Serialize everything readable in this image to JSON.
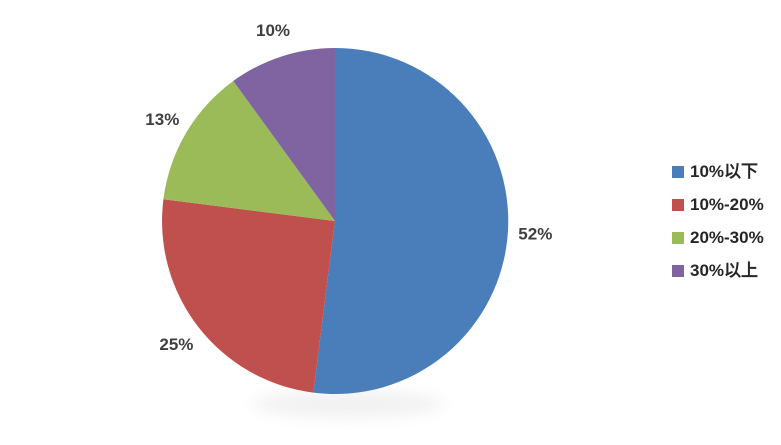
{
  "chart_data": {
    "type": "pie",
    "categories": [
      "10%以下",
      "10%-20%",
      "20%-30%",
      "30%以上"
    ],
    "values": [
      52,
      25,
      13,
      10
    ],
    "data_labels": [
      "52%",
      "25%",
      "13%",
      "10%"
    ],
    "colors": [
      "#4a7ebb",
      "#c0504d",
      "#9bbb59",
      "#8064a2"
    ],
    "slice_names": [
      "slice-under-10pct",
      "slice-10-20pct",
      "slice-20-30pct",
      "slice-over-30pct"
    ],
    "start_angle_deg": 0,
    "direction": "clockwise",
    "legend_position": "right",
    "data_label_position": "outside-end",
    "background": "#ffffff",
    "label_color": "#3f3f3f",
    "grid": false
  },
  "legend": {
    "items": [
      {
        "label": "10%以下",
        "color": "#4a7ebb"
      },
      {
        "label": "10%-20%",
        "color": "#c0504d"
      },
      {
        "label": "20%-30%",
        "color": "#9bbb59"
      },
      {
        "label": "30%以上",
        "color": "#8064a2"
      }
    ]
  }
}
